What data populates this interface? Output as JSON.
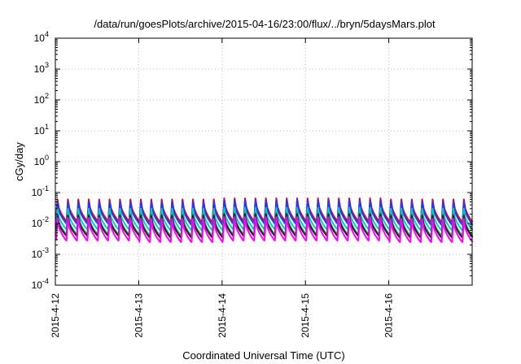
{
  "chart_data": {
    "type": "line",
    "title": "/data/run/goesPlots/archive/2015-04-16/23:00/flux/../bryn/5daysMars.plot",
    "xlabel": "Coordinated Universal Time (UTC)",
    "ylabel": "cGy/day",
    "yscale": "log",
    "ylim": [
      0.0001,
      10000
    ],
    "xlim": [
      "2015-04-12 00:00",
      "2015-04-17 00:00"
    ],
    "grid": true,
    "x_ticks": [
      "2015-4-12",
      "2015-4-13",
      "2015-4-14",
      "2015-4-15",
      "2015-4-16"
    ],
    "y_ticks": [
      {
        "base": "10",
        "exp": "-4"
      },
      {
        "base": "10",
        "exp": "-3"
      },
      {
        "base": "10",
        "exp": "-2"
      },
      {
        "base": "10",
        "exp": "-1"
      },
      {
        "base": "10",
        "exp": "0"
      },
      {
        "base": "10",
        "exp": "1"
      },
      {
        "base": "10",
        "exp": "2"
      },
      {
        "base": "10",
        "exp": "3"
      },
      {
        "base": "10",
        "exp": "4"
      }
    ],
    "sawtooth_period_hours": 3,
    "series": [
      {
        "color": "#e8001a",
        "peak": [
          0.06,
          0.06,
          0.065,
          0.065,
          0.06
        ],
        "trough": [
          0.012,
          0.011,
          0.012,
          0.012,
          0.011
        ]
      },
      {
        "color": "#1a3cff",
        "peak": [
          0.05,
          0.05,
          0.055,
          0.055,
          0.05
        ],
        "trough": [
          0.01,
          0.009,
          0.01,
          0.01,
          0.009
        ]
      },
      {
        "color": "#00cccc",
        "peak": [
          0.03,
          0.03,
          0.032,
          0.032,
          0.03
        ],
        "trough": [
          0.0065,
          0.006,
          0.0065,
          0.0065,
          0.006
        ]
      },
      {
        "color": "#2fa84f",
        "peak": [
          0.02,
          0.02,
          0.022,
          0.022,
          0.02
        ],
        "trough": [
          0.0045,
          0.004,
          0.0045,
          0.0045,
          0.004
        ]
      },
      {
        "color": "#222222",
        "peak": [
          0.018,
          0.018,
          0.02,
          0.02,
          0.018
        ],
        "trough": [
          0.004,
          0.0035,
          0.004,
          0.004,
          0.0035
        ]
      },
      {
        "color": "#ff00ff",
        "peak": [
          0.015,
          0.014,
          0.016,
          0.016,
          0.014
        ],
        "trough": [
          0.0028,
          0.0025,
          0.0028,
          0.0028,
          0.0025
        ]
      }
    ]
  }
}
